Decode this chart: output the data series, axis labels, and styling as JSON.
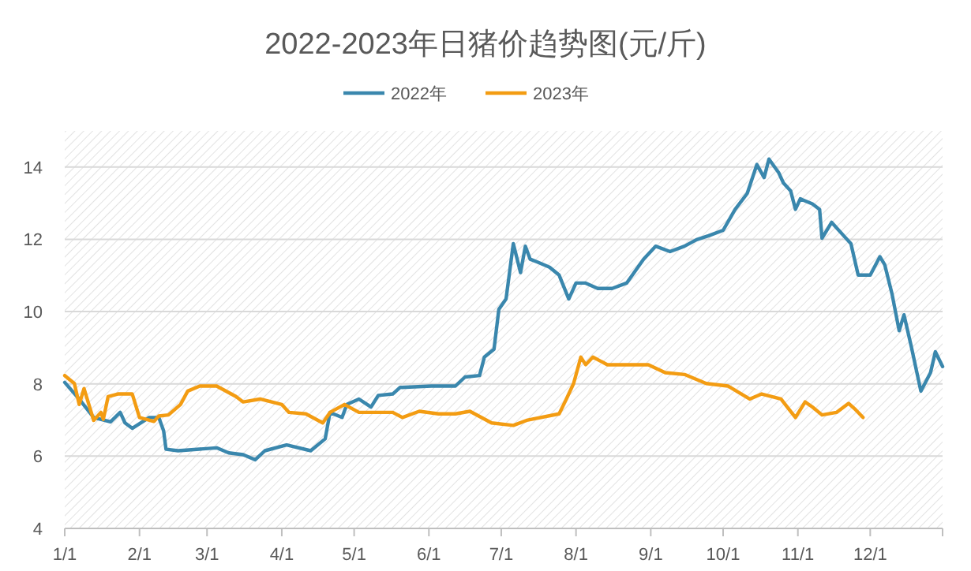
{
  "chart_data": {
    "type": "line",
    "title": "2022-2023年日猪价趋势图(元/斤)",
    "xlim": [
      "--01-01",
      "--12-31"
    ],
    "xticks": [
      {
        "value": "--01-01",
        "label": "1/1"
      },
      {
        "value": "--02-01",
        "label": "2/1"
      },
      {
        "value": "--03-01",
        "label": "3/1"
      },
      {
        "value": "--04-01",
        "label": "4/1"
      },
      {
        "value": "--05-01",
        "label": "5/1"
      },
      {
        "value": "--06-01",
        "label": "6/1"
      },
      {
        "value": "--07-01",
        "label": "7/1"
      },
      {
        "value": "--08-01",
        "label": "8/1"
      },
      {
        "value": "--09-01",
        "label": "9/1"
      },
      {
        "value": "--10-01",
        "label": "10/1"
      },
      {
        "value": "--11-01",
        "label": "11/1"
      },
      {
        "value": "--12-01",
        "label": "12/1"
      }
    ],
    "ylim": [
      4,
      15
    ],
    "yticks": [
      4,
      6,
      8,
      10,
      12,
      14
    ],
    "grid": "y",
    "legend": "top",
    "marker": "none",
    "line_style": "solid",
    "series": [
      {
        "name": "2022年",
        "color": "#3a87ad",
        "x": [
          "--01-01",
          "--01-07",
          "--01-13",
          "--01-20",
          "--01-24",
          "--01-26",
          "--01-29",
          "--02-05",
          "--02-09",
          "--02-11",
          "--02-12",
          "--02-17",
          "--03-05",
          "--03-10",
          "--03-16",
          "--03-21",
          "--03-25",
          "--04-03",
          "--04-13",
          "--04-19",
          "--04-21",
          "--04-26",
          "--04-28",
          "--05-03",
          "--05-08",
          "--05-11",
          "--05-17",
          "--05-20",
          "--06-02",
          "--06-12",
          "--06-16",
          "--06-22",
          "--06-24",
          "--06-28",
          "--06-30",
          "--07-03",
          "--07-06",
          "--07-09",
          "--07-11",
          "--07-13",
          "--07-16",
          "--07-21",
          "--07-25",
          "--07-29",
          "--08-01",
          "--08-05",
          "--08-10",
          "--08-16",
          "--08-22",
          "--08-29",
          "--09-03",
          "--09-09",
          "--09-15",
          "--09-20",
          "--09-25",
          "--10-01",
          "--10-06",
          "--10-11",
          "--10-15",
          "--10-18",
          "--10-20",
          "--10-24",
          "--10-26",
          "--10-29",
          "--10-31",
          "--11-02",
          "--11-07",
          "--11-10",
          "--11-11",
          "--11-15",
          "--11-20",
          "--11-23",
          "--11-26",
          "--12-01",
          "--12-05",
          "--12-07",
          "--12-10",
          "--12-13",
          "--12-15",
          "--12-18",
          "--12-22",
          "--12-26",
          "--12-28",
          "--12-31"
        ],
        "values": [
          8.04,
          7.58,
          7.07,
          6.95,
          7.21,
          6.92,
          6.77,
          7.07,
          7.07,
          6.7,
          6.19,
          6.15,
          6.23,
          6.09,
          6.04,
          5.9,
          6.15,
          6.31,
          6.15,
          6.48,
          7.21,
          7.07,
          7.43,
          7.58,
          7.36,
          7.68,
          7.72,
          7.9,
          7.94,
          7.94,
          8.19,
          8.23,
          8.74,
          8.96,
          10.06,
          10.35,
          11.88,
          11.08,
          11.81,
          11.45,
          11.37,
          11.23,
          11.01,
          10.35,
          10.79,
          10.79,
          10.64,
          10.64,
          10.79,
          11.45,
          11.81,
          11.66,
          11.81,
          11.99,
          12.1,
          12.25,
          12.83,
          13.27,
          14.07,
          13.71,
          14.22,
          13.85,
          13.56,
          13.34,
          12.83,
          13.12,
          12.98,
          12.83,
          12.03,
          12.47,
          12.1,
          11.88,
          11.01,
          11.01,
          11.52,
          11.3,
          10.5,
          9.47,
          9.91,
          9.04,
          7.8,
          8.31,
          8.89,
          8.48
        ]
      },
      {
        "name": "2023年",
        "color": "#f39c12",
        "x": [
          "--01-01",
          "--01-05",
          "--01-07",
          "--01-09",
          "--01-13",
          "--01-16",
          "--01-17",
          "--01-19",
          "--01-23",
          "--01-29",
          "--02-01",
          "--02-07",
          "--02-09",
          "--02-13",
          "--02-18",
          "--02-21",
          "--02-26",
          "--03-05",
          "--03-13",
          "--03-16",
          "--03-23",
          "--04-01",
          "--04-04",
          "--04-11",
          "--04-18",
          "--04-21",
          "--04-27",
          "--05-03",
          "--05-17",
          "--05-21",
          "--05-28",
          "--06-05",
          "--06-12",
          "--06-18",
          "--06-27",
          "--07-06",
          "--07-12",
          "--07-25",
          "--07-28",
          "--07-31",
          "--08-03",
          "--08-05",
          "--08-08",
          "--08-14",
          "--08-25",
          "--08-31",
          "--09-07",
          "--09-15",
          "--09-24",
          "--10-03",
          "--10-12",
          "--10-17",
          "--10-25",
          "--10-31",
          "--11-04",
          "--11-07",
          "--11-11",
          "--11-17",
          "--11-22",
          "--11-25",
          "--11-28"
        ],
        "values": [
          8.23,
          8.01,
          7.43,
          7.87,
          6.99,
          7.21,
          7.02,
          7.65,
          7.72,
          7.72,
          7.07,
          6.96,
          7.11,
          7.14,
          7.43,
          7.8,
          7.94,
          7.94,
          7.65,
          7.5,
          7.58,
          7.43,
          7.21,
          7.17,
          6.92,
          7.21,
          7.43,
          7.21,
          7.21,
          7.07,
          7.24,
          7.17,
          7.17,
          7.24,
          6.92,
          6.85,
          7.0,
          7.17,
          7.58,
          8.01,
          8.74,
          8.53,
          8.74,
          8.53,
          8.53,
          8.53,
          8.31,
          8.26,
          8.01,
          7.94,
          7.58,
          7.72,
          7.58,
          7.07,
          7.5,
          7.36,
          7.14,
          7.21,
          7.46,
          7.28,
          7.07
        ]
      }
    ]
  }
}
